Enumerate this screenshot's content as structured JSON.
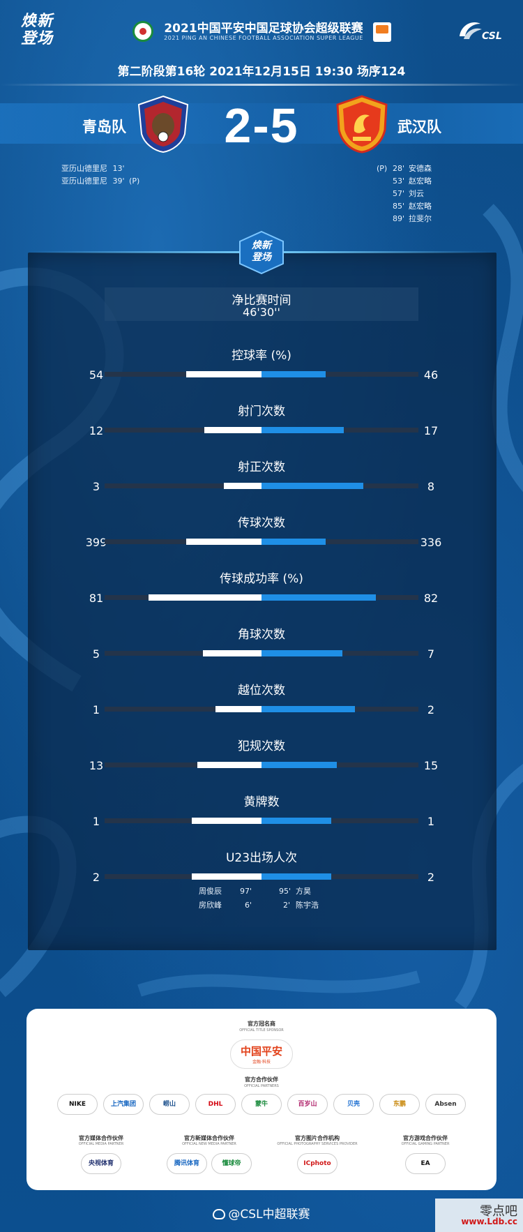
{
  "header": {
    "brand_line1": "焕新",
    "brand_line2": "登场",
    "title": "2021中国平安中国足球协会超级联赛",
    "subtitle": "2021 PING AN CHINESE FOOTBALL ASSOCIATION SUPER LEAGUE",
    "csl_logo_text": "CSL"
  },
  "match": {
    "round_info": "第二阶段第16轮  2021年12月15日 19:30 场序124",
    "home_team": "青岛队",
    "away_team": "武汉队",
    "score": "2-5",
    "home_scorers": [
      {
        "name": "亚历山德里尼",
        "minute": "13'",
        "note": ""
      },
      {
        "name": "亚历山德里尼",
        "minute": "39'",
        "note": "(P)"
      }
    ],
    "away_scorers": [
      {
        "tag": "(P)",
        "minute": "28'",
        "name": "安德森"
      },
      {
        "tag": "",
        "minute": "53'",
        "name": "赵宏略"
      },
      {
        "tag": "",
        "minute": "57'",
        "name": "刘云"
      },
      {
        "tag": "",
        "minute": "85'",
        "name": "赵宏略"
      },
      {
        "tag": "",
        "minute": "89'",
        "name": "拉斐尔"
      }
    ]
  },
  "stats_panel": {
    "badge_line1": "焕新",
    "badge_line2": "登场",
    "net_time_label": "净比赛时间",
    "net_time_value": "46'30''",
    "stats": [
      {
        "title": "控球率 (%)",
        "home": "54",
        "away": "46",
        "home_frac": 0.54,
        "away_frac": 0.46
      },
      {
        "title": "射门次数",
        "home": "12",
        "away": "17",
        "home_frac": 0.41,
        "away_frac": 0.59
      },
      {
        "title": "射正次数",
        "home": "3",
        "away": "8",
        "home_frac": 0.27,
        "away_frac": 0.73
      },
      {
        "title": "传球次数",
        "home": "399",
        "away": "336",
        "home_frac": 0.54,
        "away_frac": 0.46
      },
      {
        "title": "传球成功率 (%)",
        "home": "81",
        "away": "82",
        "home_frac": 0.81,
        "away_frac": 0.82
      },
      {
        "title": "角球次数",
        "home": "5",
        "away": "7",
        "home_frac": 0.42,
        "away_frac": 0.58
      },
      {
        "title": "越位次数",
        "home": "1",
        "away": "2",
        "home_frac": 0.33,
        "away_frac": 0.67
      },
      {
        "title": "犯规次数",
        "home": "13",
        "away": "15",
        "home_frac": 0.46,
        "away_frac": 0.54
      },
      {
        "title": "黄牌数",
        "home": "1",
        "away": "1",
        "home_frac": 0.5,
        "away_frac": 0.5
      },
      {
        "title": "U23出场人次",
        "home": "2",
        "away": "2",
        "home_frac": 0.5,
        "away_frac": 0.5
      }
    ],
    "u23_home": [
      {
        "name": "周俊辰",
        "minute": "97'"
      },
      {
        "name": "房欣峰",
        "minute": "6'"
      }
    ],
    "u23_away": [
      {
        "minute": "95'",
        "name": "方昊"
      },
      {
        "minute": "2'",
        "name": "陈宇浩"
      }
    ]
  },
  "sponsors": {
    "title_sponsor_label": "官方冠名商",
    "title_sponsor_sub": "OFFICIAL TITLE SPONSOR",
    "title_sponsor_name": "中国平安",
    "title_sponsor_tagline": "金融·科技",
    "partners_label": "官方合作伙伴",
    "partners_sub": "OFFICIAL PARTNERS",
    "partners": [
      {
        "name": "NIKE",
        "color": "#111111"
      },
      {
        "name": "上汽集团",
        "color": "#1565c0"
      },
      {
        "name": "崂山",
        "color": "#1a4f8c"
      },
      {
        "name": "DHL",
        "color": "#d40511"
      },
      {
        "name": "蒙牛",
        "color": "#1a8b3d"
      },
      {
        "name": "百岁山",
        "color": "#b0246b"
      },
      {
        "name": "贝壳",
        "color": "#1d6fd1"
      },
      {
        "name": "东鹏",
        "color": "#c98a10"
      },
      {
        "name": "Absen",
        "color": "#333333"
      }
    ],
    "categories": [
      {
        "label": "官方媒体合作伙伴",
        "sub": "OFFICIAL MEDIA PARTNER",
        "items": [
          {
            "name": "央视体育",
            "color": "#1b2b6b"
          }
        ]
      },
      {
        "label": "官方新媒体合作伙伴",
        "sub": "OFFICIAL NEW MEDIA PARTNER",
        "items": [
          {
            "name": "腾讯体育",
            "color": "#1565c0"
          },
          {
            "name": "懂球帝",
            "color": "#1a8b3d"
          }
        ]
      },
      {
        "label": "官方图片合作机构",
        "sub": "OFFICIAL PHOTOGRAPHY SERVICES PROVIDER",
        "items": [
          {
            "name": "ICphoto",
            "color": "#d01818"
          }
        ]
      },
      {
        "label": "官方游戏合作伙伴",
        "sub": "OFFICIAL GAMING PARTNER",
        "items": [
          {
            "name": "EA",
            "color": "#111111"
          }
        ]
      }
    ]
  },
  "footer": {
    "text": "@CSL中超联赛",
    "watermark": "零点吧",
    "watermark_url": "www.Ldb.cc"
  },
  "colors": {
    "home_bar": "#ffffff",
    "away_bar": "#1f8fe6",
    "track": "#24344a",
    "background": "#0f4d86"
  }
}
